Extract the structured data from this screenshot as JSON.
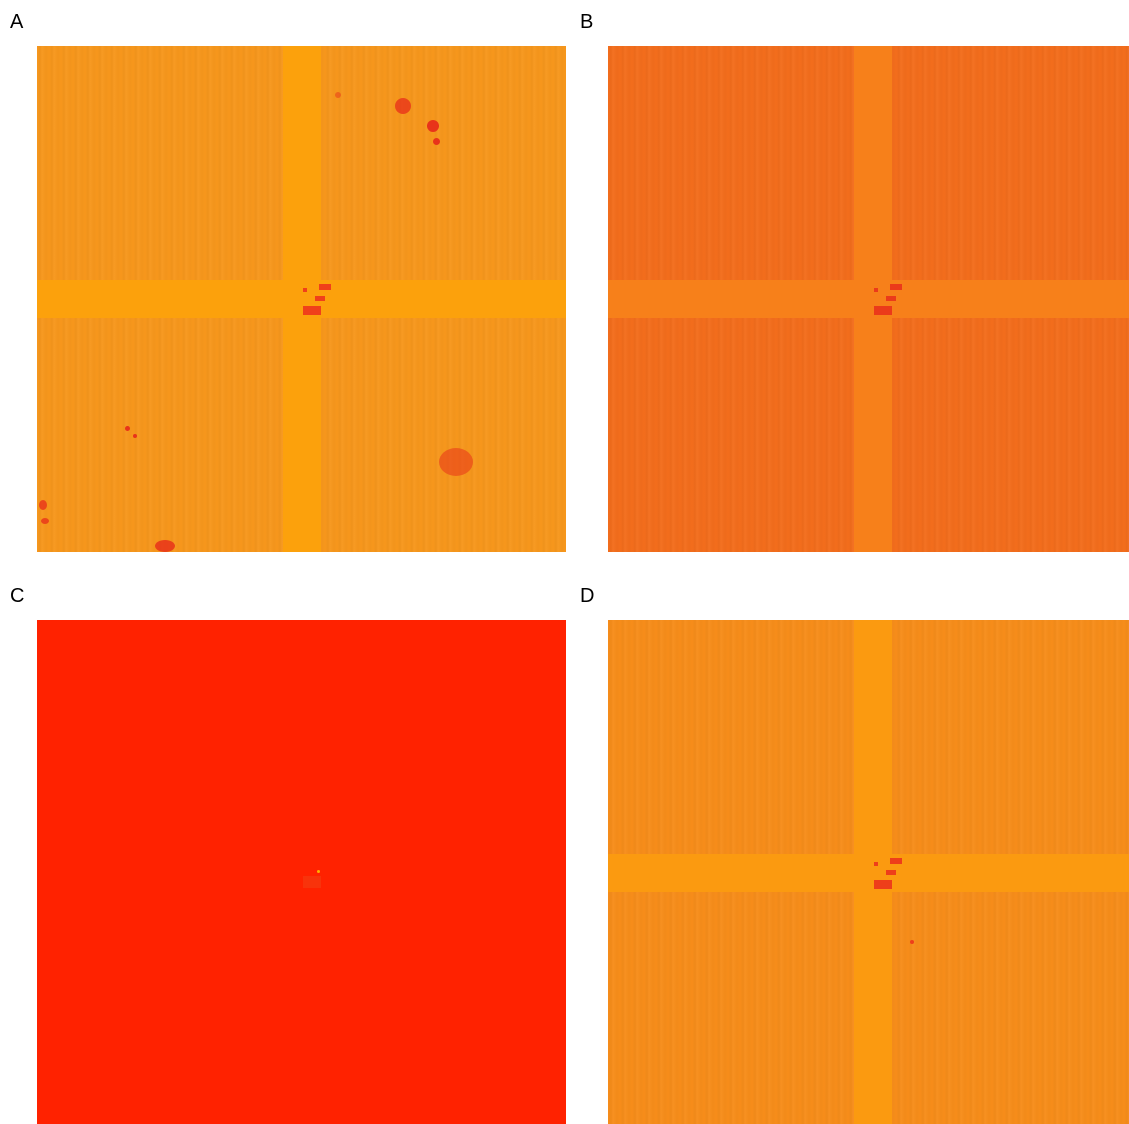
{
  "panels": [
    {
      "label": "A",
      "colors": {
        "background": "#f7971c",
        "band": "#fca10c",
        "marker": "#f0401a",
        "spot": "#e8331a"
      }
    },
    {
      "label": "B",
      "colors": {
        "background": "#f36d1c",
        "band": "#f7801a",
        "marker": "#eb3a1a"
      }
    },
    {
      "label": "C",
      "colors": {
        "background": "#ff2200",
        "marker": "#f53a10"
      }
    },
    {
      "label": "D",
      "colors": {
        "background": "#f78d1a",
        "band": "#fb9a10",
        "marker": "#ee3e1a"
      }
    }
  ]
}
